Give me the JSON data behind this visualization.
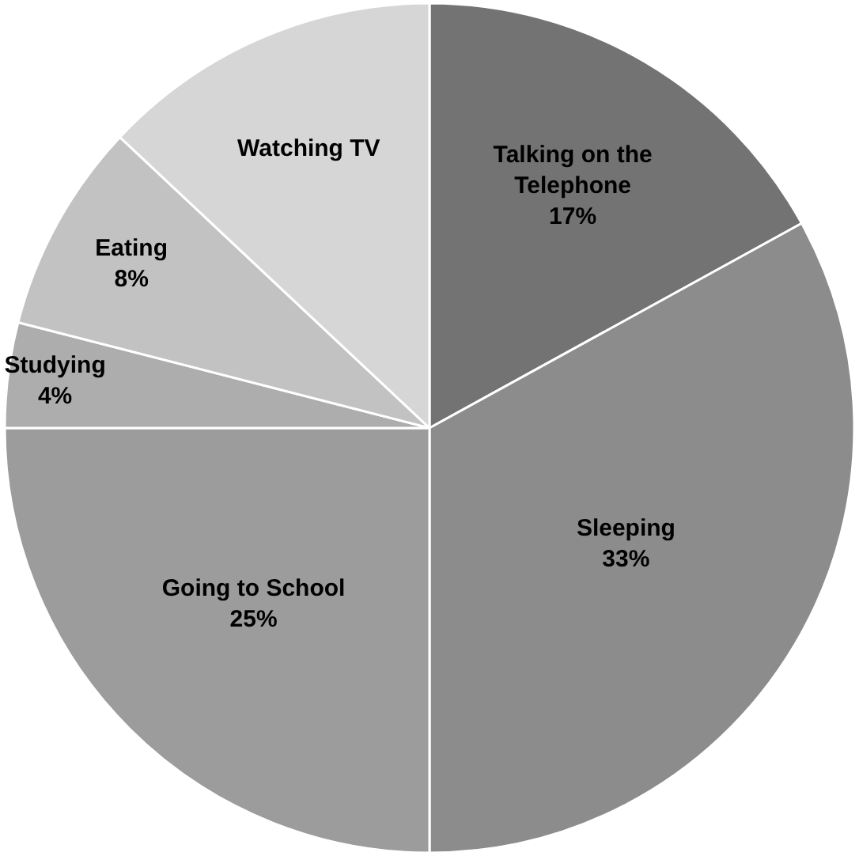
{
  "chart_data": {
    "type": "pie",
    "categories": [
      "Talking on the Telephone",
      "Sleeping",
      "Going to School",
      "Studying",
      "Eating",
      "Watching TV"
    ],
    "values": [
      17,
      33,
      25,
      4,
      8,
      13
    ],
    "value_labels": [
      "17%",
      "33%",
      "25%",
      "4%",
      "8%",
      null
    ],
    "colors": [
      "#737373",
      "#8c8c8c",
      "#9c9c9c",
      "#adadad",
      "#c2c2c2",
      "#d6d6d6"
    ],
    "legend": false
  }
}
